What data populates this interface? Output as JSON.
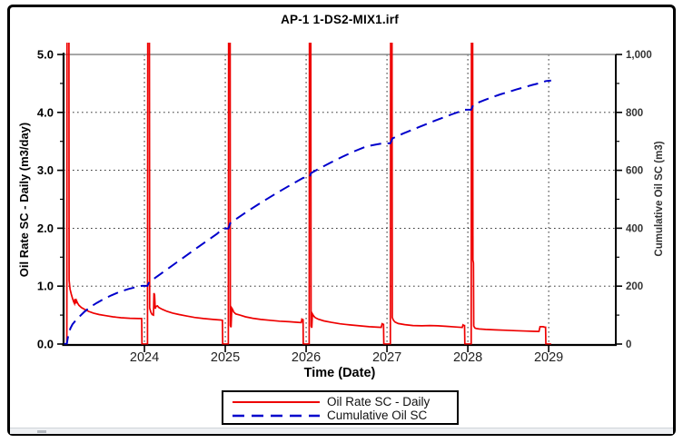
{
  "title": "AP-1 1-DS2-MIX1.irf",
  "chart_data": {
    "type": "line",
    "title": "AP-1 1-DS2-MIX1.irf",
    "xlabel": "Time (Date)",
    "x_range": [
      2023.0,
      2029.83
    ],
    "x_ticks": [
      {
        "v": 2024,
        "label": "2024"
      },
      {
        "v": 2025,
        "label": "2025"
      },
      {
        "v": 2026,
        "label": "2026"
      },
      {
        "v": 2027,
        "label": "2027"
      },
      {
        "v": 2028,
        "label": "2028"
      },
      {
        "v": 2029,
        "label": "2029"
      }
    ],
    "y_left": {
      "label": "Oil Rate SC - Daily (m3/day)",
      "range": [
        0,
        5
      ],
      "ticks": [
        {
          "v": 0,
          "label": "0.0"
        },
        {
          "v": 1,
          "label": "1.0"
        },
        {
          "v": 2,
          "label": "2.0"
        },
        {
          "v": 3,
          "label": "3.0"
        },
        {
          "v": 4,
          "label": "4.0"
        },
        {
          "v": 5,
          "label": "5.0"
        }
      ],
      "minor_step": 0.5
    },
    "y_right": {
      "label": "Cumulative Oil SC (m3)",
      "range": [
        0,
        1000
      ],
      "ticks": [
        {
          "v": 0,
          "label": "0"
        },
        {
          "v": 200,
          "label": "200"
        },
        {
          "v": 400,
          "label": "400"
        },
        {
          "v": 600,
          "label": "600"
        },
        {
          "v": 800,
          "label": "800"
        },
        {
          "v": 1000,
          "label": "1,000"
        }
      ],
      "minor_step": 100
    },
    "grid": {
      "horizontal_at": [
        1,
        2,
        3,
        4
      ],
      "vertical_at": [
        2024,
        2025,
        2026,
        2027,
        2028,
        2029
      ],
      "style": "dotted",
      "color": "#1a1a1a"
    },
    "frame": {
      "top_color": "#8a8a8a",
      "axis_color": "#000000"
    },
    "legend": {
      "position": "bottom"
    },
    "series": [
      {
        "name": "Oil Rate SC - Daily",
        "color": "#EE0000",
        "dash": "solid",
        "axis": "left",
        "points": [
          [
            2023.0,
            0
          ],
          [
            2023.04,
            0
          ],
          [
            2023.043,
            5.5
          ],
          [
            2023.066,
            5.5
          ],
          [
            2023.069,
            1.1
          ],
          [
            2023.08,
            0.95
          ],
          [
            2023.095,
            0.86
          ],
          [
            2023.11,
            0.79
          ],
          [
            2023.125,
            0.73
          ],
          [
            2023.135,
            0.7
          ],
          [
            2023.142,
            0.78
          ],
          [
            2023.15,
            0.7
          ],
          [
            2023.16,
            0.75
          ],
          [
            2023.172,
            0.71
          ],
          [
            2023.19,
            0.67
          ],
          [
            2023.22,
            0.63
          ],
          [
            2023.26,
            0.6
          ],
          [
            2023.31,
            0.565
          ],
          [
            2023.37,
            0.535
          ],
          [
            2023.44,
            0.51
          ],
          [
            2023.52,
            0.49
          ],
          [
            2023.61,
            0.47
          ],
          [
            2023.71,
            0.455
          ],
          [
            2023.82,
            0.445
          ],
          [
            2023.93,
            0.44
          ],
          [
            2023.966,
            0.44
          ],
          [
            2023.969,
            0
          ],
          [
            2024.038,
            0
          ],
          [
            2024.041,
            5.5
          ],
          [
            2024.062,
            5.5
          ],
          [
            2024.065,
            0.62
          ],
          [
            2024.08,
            0.55
          ],
          [
            2024.095,
            0.51
          ],
          [
            2024.112,
            0.5
          ],
          [
            2024.118,
            0.88
          ],
          [
            2024.126,
            0.85
          ],
          [
            2024.133,
            0.61
          ],
          [
            2024.145,
            0.65
          ],
          [
            2024.16,
            0.66
          ],
          [
            2024.18,
            0.63
          ],
          [
            2024.22,
            0.6
          ],
          [
            2024.28,
            0.565
          ],
          [
            2024.35,
            0.535
          ],
          [
            2024.43,
            0.51
          ],
          [
            2024.52,
            0.485
          ],
          [
            2024.62,
            0.46
          ],
          [
            2024.73,
            0.44
          ],
          [
            2024.85,
            0.425
          ],
          [
            2024.94,
            0.415
          ],
          [
            2024.965,
            0.41
          ],
          [
            2024.968,
            0
          ],
          [
            2025.038,
            0
          ],
          [
            2025.041,
            5.5
          ],
          [
            2025.06,
            5.5
          ],
          [
            2025.063,
            0.32
          ],
          [
            2025.072,
            0.29
          ],
          [
            2025.08,
            0.62
          ],
          [
            2025.09,
            0.6
          ],
          [
            2025.105,
            0.55
          ],
          [
            2025.13,
            0.52
          ],
          [
            2025.18,
            0.5
          ],
          [
            2025.25,
            0.47
          ],
          [
            2025.34,
            0.445
          ],
          [
            2025.44,
            0.425
          ],
          [
            2025.55,
            0.41
          ],
          [
            2025.67,
            0.395
          ],
          [
            2025.79,
            0.385
          ],
          [
            2025.9,
            0.375
          ],
          [
            2025.94,
            0.372
          ],
          [
            2025.948,
            0.43
          ],
          [
            2025.958,
            0.42
          ],
          [
            2025.962,
            0.42
          ],
          [
            2025.965,
            0
          ],
          [
            2026.038,
            0
          ],
          [
            2026.041,
            5.5
          ],
          [
            2026.058,
            5.5
          ],
          [
            2026.061,
            0.31
          ],
          [
            2026.07,
            0.28
          ],
          [
            2026.078,
            0.52
          ],
          [
            2026.09,
            0.49
          ],
          [
            2026.11,
            0.46
          ],
          [
            2026.15,
            0.43
          ],
          [
            2026.22,
            0.4
          ],
          [
            2026.31,
            0.375
          ],
          [
            2026.42,
            0.35
          ],
          [
            2026.54,
            0.33
          ],
          [
            2026.66,
            0.315
          ],
          [
            2026.78,
            0.3
          ],
          [
            2026.88,
            0.292
          ],
          [
            2026.93,
            0.288
          ],
          [
            2026.94,
            0.35
          ],
          [
            2026.952,
            0.34
          ],
          [
            2026.958,
            0.34
          ],
          [
            2026.961,
            0
          ],
          [
            2027.042,
            0
          ],
          [
            2027.045,
            5.5
          ],
          [
            2027.062,
            5.5
          ],
          [
            2027.065,
            0.46
          ],
          [
            2027.08,
            0.41
          ],
          [
            2027.1,
            0.38
          ],
          [
            2027.14,
            0.355
          ],
          [
            2027.22,
            0.335
          ],
          [
            2027.32,
            0.32
          ],
          [
            2027.43,
            0.315
          ],
          [
            2027.53,
            0.32
          ],
          [
            2027.63,
            0.315
          ],
          [
            2027.74,
            0.305
          ],
          [
            2027.85,
            0.295
          ],
          [
            2027.93,
            0.287
          ],
          [
            2027.94,
            0.33
          ],
          [
            2027.952,
            0.32
          ],
          [
            2027.96,
            0.32
          ],
          [
            2027.963,
            0
          ],
          [
            2028.042,
            0
          ],
          [
            2028.045,
            5.5
          ],
          [
            2028.06,
            5.5
          ],
          [
            2028.063,
            1.45
          ],
          [
            2028.07,
            1.4
          ],
          [
            2028.073,
            0.31
          ],
          [
            2028.085,
            0.28
          ],
          [
            2028.1,
            0.27
          ],
          [
            2028.14,
            0.26
          ],
          [
            2028.22,
            0.252
          ],
          [
            2028.34,
            0.245
          ],
          [
            2028.47,
            0.238
          ],
          [
            2028.6,
            0.23
          ],
          [
            2028.72,
            0.224
          ],
          [
            2028.82,
            0.22
          ],
          [
            2028.88,
            0.218
          ],
          [
            2028.893,
            0.3
          ],
          [
            2028.93,
            0.3
          ],
          [
            2028.955,
            0.29
          ],
          [
            2028.962,
            0.29
          ],
          [
            2028.965,
            0
          ],
          [
            2029.03,
            0
          ]
        ]
      },
      {
        "name": "Cumulative Oil SC",
        "color": "#0000CC",
        "dash": "dashed",
        "axis": "right",
        "points": [
          [
            2023.0,
            0
          ],
          [
            2023.04,
            1
          ],
          [
            2023.048,
            15
          ],
          [
            2023.06,
            32
          ],
          [
            2023.07,
            42
          ],
          [
            2023.085,
            55
          ],
          [
            2023.11,
            68
          ],
          [
            2023.15,
            82
          ],
          [
            2023.2,
            96
          ],
          [
            2023.26,
            112
          ],
          [
            2023.33,
            128
          ],
          [
            2023.41,
            142
          ],
          [
            2023.5,
            156
          ],
          [
            2023.59,
            168
          ],
          [
            2023.69,
            180
          ],
          [
            2023.8,
            190
          ],
          [
            2023.9,
            197
          ],
          [
            2023.968,
            201
          ],
          [
            2024.038,
            201
          ],
          [
            2024.048,
            208
          ],
          [
            2024.062,
            216
          ],
          [
            2024.11,
            224
          ],
          [
            2024.2,
            242
          ],
          [
            2024.3,
            262
          ],
          [
            2024.4,
            282
          ],
          [
            2024.5,
            302
          ],
          [
            2024.6,
            322
          ],
          [
            2024.7,
            342
          ],
          [
            2024.8,
            361
          ],
          [
            2024.9,
            381
          ],
          [
            2024.968,
            399
          ],
          [
            2025.038,
            399
          ],
          [
            2025.048,
            406
          ],
          [
            2025.06,
            417
          ],
          [
            2025.13,
            431
          ],
          [
            2025.25,
            454
          ],
          [
            2025.4,
            481
          ],
          [
            2025.55,
            507
          ],
          [
            2025.7,
            532
          ],
          [
            2025.85,
            556
          ],
          [
            2025.965,
            574
          ],
          [
            2026.038,
            574
          ],
          [
            2026.048,
            580
          ],
          [
            2026.06,
            590
          ],
          [
            2026.15,
            604
          ],
          [
            2026.3,
            626
          ],
          [
            2026.45,
            647
          ],
          [
            2026.6,
            666
          ],
          [
            2026.75,
            683
          ],
          [
            2026.9,
            691
          ],
          [
            2026.958,
            693
          ],
          [
            2027.042,
            693
          ],
          [
            2027.052,
            699
          ],
          [
            2027.068,
            710
          ],
          [
            2027.2,
            727
          ],
          [
            2027.4,
            750
          ],
          [
            2027.6,
            772
          ],
          [
            2027.8,
            793
          ],
          [
            2027.93,
            806
          ],
          [
            2027.96,
            809
          ],
          [
            2028.042,
            809
          ],
          [
            2028.052,
            816
          ],
          [
            2028.068,
            827
          ],
          [
            2028.2,
            842
          ],
          [
            2028.4,
            862
          ],
          [
            2028.6,
            879
          ],
          [
            2028.8,
            895
          ],
          [
            2028.9,
            902
          ],
          [
            2028.965,
            908
          ],
          [
            2029.03,
            910
          ]
        ]
      }
    ]
  }
}
